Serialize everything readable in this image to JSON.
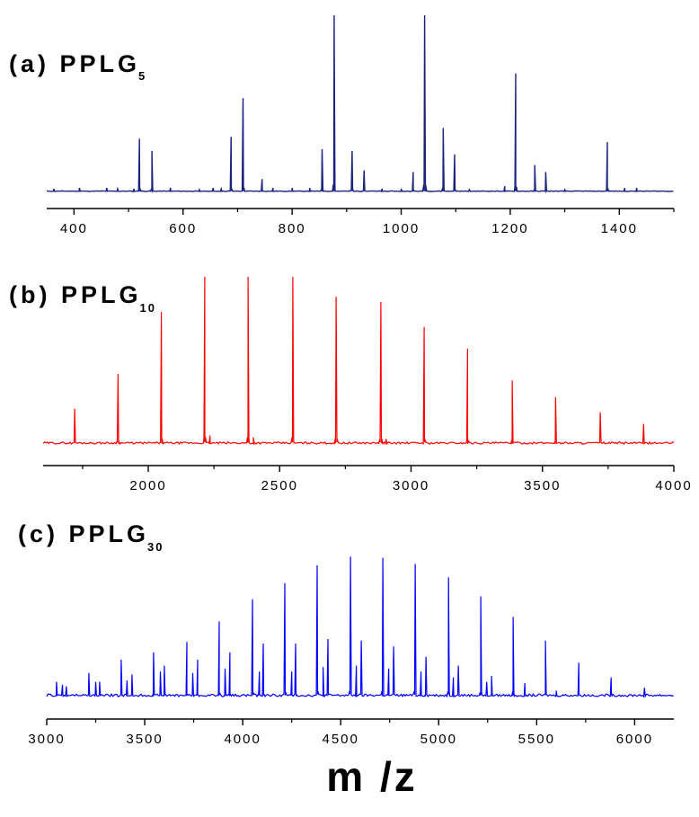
{
  "chart_data": [
    {
      "type": "line",
      "title_main": "(a) PPLG",
      "title_sub": "5",
      "color": "#1a237e",
      "xlim": [
        350,
        1500
      ],
      "xticks": [
        400,
        600,
        800,
        1000,
        1200,
        1400
      ],
      "minor_step": 100,
      "peaks": [
        {
          "x": 363,
          "y": 0.015
        },
        {
          "x": 410,
          "y": 0.02
        },
        {
          "x": 460,
          "y": 0.02
        },
        {
          "x": 480,
          "y": 0.015
        },
        {
          "x": 510,
          "y": 0.015
        },
        {
          "x": 520,
          "y": 0.3
        },
        {
          "x": 543,
          "y": 0.23
        },
        {
          "x": 577,
          "y": 0.02
        },
        {
          "x": 630,
          "y": 0.01
        },
        {
          "x": 655,
          "y": 0.02
        },
        {
          "x": 670,
          "y": 0.015
        },
        {
          "x": 688,
          "y": 0.31
        },
        {
          "x": 710,
          "y": 0.53
        },
        {
          "x": 745,
          "y": 0.07
        },
        {
          "x": 765,
          "y": 0.02
        },
        {
          "x": 800,
          "y": 0.02
        },
        {
          "x": 832,
          "y": 0.02
        },
        {
          "x": 855,
          "y": 0.24
        },
        {
          "x": 877,
          "y": 1.0
        },
        {
          "x": 910,
          "y": 0.23
        },
        {
          "x": 932,
          "y": 0.12
        },
        {
          "x": 965,
          "y": 0.015
        },
        {
          "x": 1000,
          "y": 0.015
        },
        {
          "x": 1022,
          "y": 0.11
        },
        {
          "x": 1043,
          "y": 1.0
        },
        {
          "x": 1077,
          "y": 0.36
        },
        {
          "x": 1098,
          "y": 0.21
        },
        {
          "x": 1125,
          "y": 0.01
        },
        {
          "x": 1190,
          "y": 0.03
        },
        {
          "x": 1210,
          "y": 0.67
        },
        {
          "x": 1245,
          "y": 0.15
        },
        {
          "x": 1265,
          "y": 0.11
        },
        {
          "x": 1300,
          "y": 0.01
        },
        {
          "x": 1378,
          "y": 0.28
        },
        {
          "x": 1410,
          "y": 0.02
        },
        {
          "x": 1432,
          "y": 0.02
        }
      ]
    },
    {
      "type": "line",
      "title_main": "(b) PPLG",
      "title_sub": "10",
      "color": "#ff0000",
      "xlim": [
        1600,
        4000
      ],
      "xticks": [
        2000,
        2500,
        3000,
        3500,
        4000
      ],
      "minor_step": 250,
      "peaks": [
        {
          "x": 1720,
          "y": 0.21
        },
        {
          "x": 1885,
          "y": 0.42
        },
        {
          "x": 2050,
          "y": 0.79
        },
        {
          "x": 2215,
          "y": 1.0
        },
        {
          "x": 2235,
          "y": 0.05
        },
        {
          "x": 2380,
          "y": 1.0
        },
        {
          "x": 2400,
          "y": 0.04
        },
        {
          "x": 2550,
          "y": 1.0
        },
        {
          "x": 2715,
          "y": 0.88
        },
        {
          "x": 2885,
          "y": 0.85
        },
        {
          "x": 2905,
          "y": 0.03
        },
        {
          "x": 3050,
          "y": 0.7
        },
        {
          "x": 3215,
          "y": 0.57
        },
        {
          "x": 3385,
          "y": 0.38
        },
        {
          "x": 3550,
          "y": 0.28
        },
        {
          "x": 3720,
          "y": 0.19
        },
        {
          "x": 3885,
          "y": 0.12
        }
      ]
    },
    {
      "type": "line",
      "title_main": "(c) PPLG",
      "title_sub": "30",
      "color": "#0000ff",
      "xlim": [
        3000,
        6200
      ],
      "xticks": [
        3000,
        3500,
        4000,
        4500,
        5000,
        5500,
        6000
      ],
      "minor_step": 250,
      "peaks": [
        {
          "x": 3050,
          "y": 0.1
        },
        {
          "x": 3080,
          "y": 0.08
        },
        {
          "x": 3100,
          "y": 0.07
        },
        {
          "x": 3215,
          "y": 0.16
        },
        {
          "x": 3250,
          "y": 0.1
        },
        {
          "x": 3270,
          "y": 0.1
        },
        {
          "x": 3380,
          "y": 0.25
        },
        {
          "x": 3410,
          "y": 0.11
        },
        {
          "x": 3435,
          "y": 0.15
        },
        {
          "x": 3545,
          "y": 0.3
        },
        {
          "x": 3580,
          "y": 0.17
        },
        {
          "x": 3600,
          "y": 0.21
        },
        {
          "x": 3715,
          "y": 0.37
        },
        {
          "x": 3745,
          "y": 0.16
        },
        {
          "x": 3770,
          "y": 0.25
        },
        {
          "x": 3880,
          "y": 0.51
        },
        {
          "x": 3910,
          "y": 0.19
        },
        {
          "x": 3935,
          "y": 0.3
        },
        {
          "x": 4050,
          "y": 0.66
        },
        {
          "x": 4085,
          "y": 0.17
        },
        {
          "x": 4105,
          "y": 0.36
        },
        {
          "x": 4215,
          "y": 0.77
        },
        {
          "x": 4250,
          "y": 0.17
        },
        {
          "x": 4270,
          "y": 0.36
        },
        {
          "x": 4380,
          "y": 0.89
        },
        {
          "x": 4410,
          "y": 0.2
        },
        {
          "x": 4435,
          "y": 0.39
        },
        {
          "x": 4550,
          "y": 0.95
        },
        {
          "x": 4580,
          "y": 0.21
        },
        {
          "x": 4605,
          "y": 0.38
        },
        {
          "x": 4715,
          "y": 0.94
        },
        {
          "x": 4745,
          "y": 0.19
        },
        {
          "x": 4770,
          "y": 0.34
        },
        {
          "x": 4880,
          "y": 0.9
        },
        {
          "x": 4910,
          "y": 0.17
        },
        {
          "x": 4935,
          "y": 0.27
        },
        {
          "x": 5050,
          "y": 0.81
        },
        {
          "x": 5075,
          "y": 0.13
        },
        {
          "x": 5100,
          "y": 0.21
        },
        {
          "x": 5215,
          "y": 0.68
        },
        {
          "x": 5245,
          "y": 0.1
        },
        {
          "x": 5270,
          "y": 0.14
        },
        {
          "x": 5380,
          "y": 0.54
        },
        {
          "x": 5440,
          "y": 0.09
        },
        {
          "x": 5545,
          "y": 0.38
        },
        {
          "x": 5600,
          "y": 0.04
        },
        {
          "x": 5715,
          "y": 0.23
        },
        {
          "x": 5880,
          "y": 0.13
        },
        {
          "x": 6050,
          "y": 0.06
        }
      ]
    }
  ],
  "xlabel": "m /z"
}
